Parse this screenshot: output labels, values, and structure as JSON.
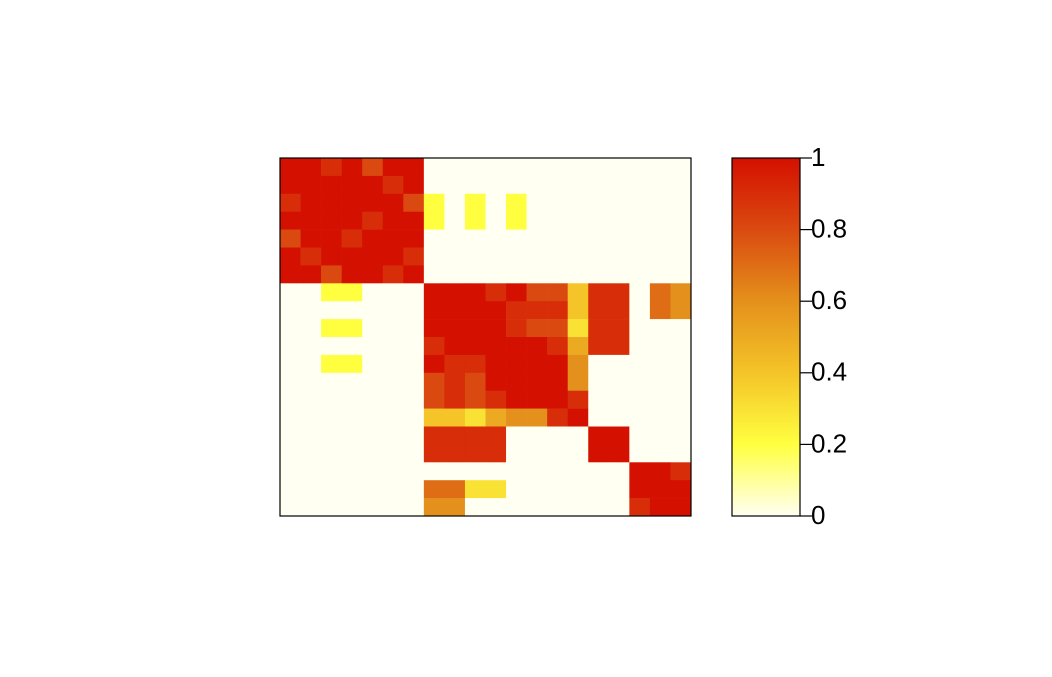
{
  "chart_data": {
    "type": "heatmap",
    "values": [
      [
        1,
        1,
        0.9,
        1,
        0.8,
        1,
        1,
        0,
        0,
        0,
        0,
        0,
        0,
        0,
        0,
        0,
        0,
        0,
        0,
        0
      ],
      [
        1,
        1,
        1,
        1,
        1,
        0.9,
        1,
        0,
        0,
        0,
        0,
        0,
        0,
        0,
        0,
        0,
        0,
        0,
        0,
        0
      ],
      [
        0.9,
        1,
        1,
        1,
        1,
        1,
        0.8,
        0.2,
        0,
        0.2,
        0,
        0.2,
        0,
        0,
        0,
        0,
        0,
        0,
        0,
        0
      ],
      [
        1,
        1,
        1,
        1,
        0.9,
        1,
        1,
        0.2,
        0,
        0.2,
        0,
        0.2,
        0,
        0,
        0,
        0,
        0,
        0,
        0,
        0
      ],
      [
        0.8,
        1,
        1,
        0.9,
        1,
        1,
        1,
        0,
        0,
        0,
        0,
        0,
        0,
        0,
        0,
        0,
        0,
        0,
        0,
        0
      ],
      [
        1,
        0.9,
        1,
        1,
        1,
        1,
        0.9,
        0,
        0,
        0,
        0,
        0,
        0,
        0,
        0,
        0,
        0,
        0,
        0,
        0
      ],
      [
        1,
        1,
        0.8,
        1,
        1,
        0.9,
        1,
        0,
        0,
        0,
        0,
        0,
        0,
        0,
        0,
        0,
        0,
        0,
        0,
        0
      ],
      [
        0,
        0,
        0.2,
        0.2,
        0,
        0,
        0,
        1,
        1,
        1,
        0.9,
        1,
        0.8,
        0.8,
        0.4,
        0.9,
        0.9,
        0,
        0.7,
        0.6
      ],
      [
        0,
        0,
        0,
        0,
        0,
        0,
        0,
        1,
        1,
        1,
        1,
        0.9,
        0.9,
        0.9,
        0.4,
        0.9,
        0.9,
        0,
        0.7,
        0.6
      ],
      [
        0,
        0,
        0.2,
        0.2,
        0,
        0,
        0,
        1,
        1,
        1,
        1,
        0.9,
        0.8,
        0.8,
        0.3,
        0.9,
        0.9,
        0,
        0,
        0
      ],
      [
        0,
        0,
        0,
        0,
        0,
        0,
        0,
        0.9,
        1,
        1,
        1,
        1,
        1,
        0.9,
        0.5,
        0.9,
        0.9,
        0,
        0,
        0
      ],
      [
        0,
        0,
        0.2,
        0.2,
        0,
        0,
        0,
        1,
        0.9,
        0.9,
        1,
        1,
        1,
        1,
        0.6,
        0,
        0,
        0,
        0,
        0
      ],
      [
        0,
        0,
        0,
        0,
        0,
        0,
        0,
        0.8,
        0.9,
        0.8,
        1,
        1,
        1,
        1,
        0.6,
        0,
        0,
        0,
        0,
        0
      ],
      [
        0,
        0,
        0,
        0,
        0,
        0,
        0,
        0.8,
        0.9,
        0.8,
        0.9,
        1,
        1,
        1,
        0.9,
        0,
        0,
        0,
        0,
        0
      ],
      [
        0,
        0,
        0,
        0,
        0,
        0,
        0,
        0.4,
        0.4,
        0.3,
        0.5,
        0.6,
        0.6,
        0.9,
        1,
        0,
        0,
        0,
        0,
        0
      ],
      [
        0,
        0,
        0,
        0,
        0,
        0,
        0,
        0.9,
        0.9,
        0.9,
        0.9,
        0,
        0,
        0,
        0,
        1,
        1,
        0,
        0,
        0
      ],
      [
        0,
        0,
        0,
        0,
        0,
        0,
        0,
        0.9,
        0.9,
        0.9,
        0.9,
        0,
        0,
        0,
        0,
        1,
        1,
        0,
        0,
        0
      ],
      [
        0,
        0,
        0,
        0,
        0,
        0,
        0,
        0,
        0,
        0,
        0,
        0,
        0,
        0,
        0,
        0,
        0,
        1,
        1,
        0.9
      ],
      [
        0,
        0,
        0,
        0,
        0,
        0,
        0,
        0.7,
        0.7,
        0.3,
        0.3,
        0,
        0,
        0,
        0,
        0,
        0,
        1,
        1,
        1
      ],
      [
        0,
        0,
        0,
        0,
        0,
        0,
        0,
        0.6,
        0.6,
        0,
        0,
        0,
        0,
        0,
        0,
        0,
        0,
        0.9,
        1,
        1
      ]
    ],
    "zlim": [
      0,
      1
    ],
    "zticks": [
      0,
      0.2,
      0.4,
      0.6,
      0.8,
      1
    ],
    "colorscale": [
      "#fffff2",
      "#ffff40",
      "#f4c428",
      "#e4901c",
      "#da4a10",
      "#d41000"
    ]
  }
}
